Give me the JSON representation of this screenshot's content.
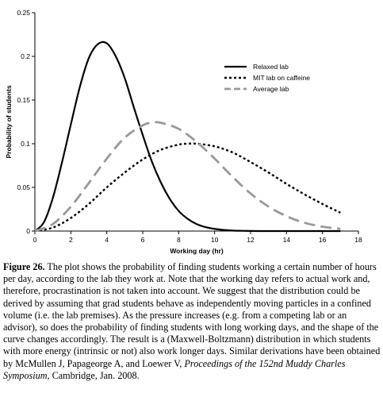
{
  "chart_data": {
    "type": "line",
    "xlabel": "Working day (hr)",
    "ylabel": "Probability of students",
    "xlim": [
      0,
      18
    ],
    "ylim": [
      0,
      0.25
    ],
    "x_ticks": [
      0,
      2,
      4,
      6,
      8,
      10,
      12,
      14,
      16,
      18
    ],
    "y_ticks": [
      0,
      0.05,
      0.1,
      0.15,
      0.2,
      0.25
    ],
    "y_tick_labels": [
      "0",
      "0.05",
      "0.1",
      "0.15",
      "0.2",
      "0.25"
    ],
    "grid": false,
    "legend_position": "top-right",
    "series": [
      {
        "name": "Relaxed lab",
        "style": "solid",
        "color": "#000000",
        "x": [
          0,
          0.5,
          1,
          1.5,
          2,
          2.5,
          3,
          3.5,
          4,
          4.5,
          5,
          5.5,
          6,
          6.5,
          7,
          7.5,
          8,
          8.5,
          9,
          9.5,
          10,
          10.5,
          11,
          11.5,
          12,
          12.5,
          13,
          14,
          15,
          16,
          17
        ],
        "y": [
          0,
          0.01,
          0.038,
          0.078,
          0.122,
          0.165,
          0.198,
          0.214,
          0.215,
          0.2,
          0.175,
          0.142,
          0.11,
          0.08,
          0.056,
          0.037,
          0.023,
          0.014,
          0.008,
          0.0045,
          0.0025,
          0.0013,
          0.0006,
          0.0003,
          0.0001,
          0,
          0,
          0,
          0,
          0,
          0
        ]
      },
      {
        "name": "MIT lab on caffeine",
        "style": "dotted",
        "color": "#000000",
        "x": [
          0,
          1,
          2,
          3,
          4,
          5,
          6,
          7,
          8,
          8.5,
          9,
          10,
          11,
          12,
          13,
          14,
          15,
          16,
          17
        ],
        "y": [
          0,
          0.004,
          0.015,
          0.031,
          0.05,
          0.067,
          0.082,
          0.093,
          0.099,
          0.1,
          0.1,
          0.097,
          0.09,
          0.079,
          0.067,
          0.054,
          0.042,
          0.031,
          0.021
        ]
      },
      {
        "name": "Average lab",
        "style": "dashed",
        "color": "#999999",
        "x": [
          0,
          1,
          2,
          3,
          4,
          5,
          6,
          6.5,
          7,
          8,
          9,
          10,
          11,
          12,
          13,
          14,
          15,
          16,
          17
        ],
        "y": [
          0,
          0.008,
          0.028,
          0.055,
          0.083,
          0.107,
          0.121,
          0.124,
          0.124,
          0.117,
          0.102,
          0.083,
          0.062,
          0.043,
          0.028,
          0.017,
          0.0095,
          0.005,
          0.0025
        ]
      }
    ]
  },
  "caption": {
    "label": "Figure 26.",
    "text1": " The plot shows the probability of finding students working a certain number of hours per day, according to the lab they work at. Note that the working day refers to actual work and, therefore, procrastination is not taken into account. We suggest that the distribution could be derived by assuming that grad students behave as independently moving particles in a confined volume (i.e. the lab premises). As the pressure increases (e.g. from a competing lab or an advisor), so does the probability of finding students with long working days, and the shape of the curve changes accordingly. The result is a (Maxwell-Boltzmann) distribution in which students with more energy (intrinsic or not) also work longer days. Similar derivations have been obtained by McMullen J, Papageorge A, and Loewer V, ",
    "italic": "Proceedings of the 152nd Muddy Charles Symposium",
    "text2": ", Cambridge, Jan. 2008."
  }
}
